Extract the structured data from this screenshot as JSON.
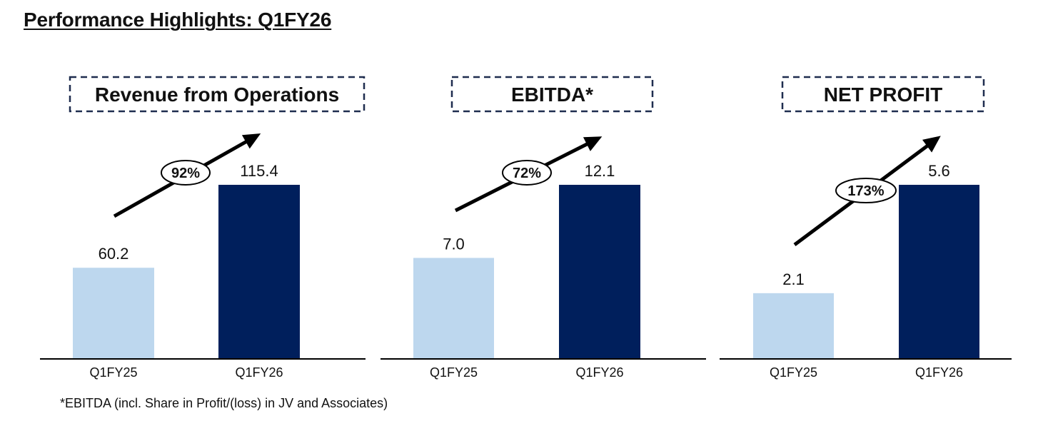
{
  "page": {
    "title": "Performance Highlights: Q1FY26",
    "footnote": "*EBITDA (incl. Share in Profit/(loss) in JV and Associates)"
  },
  "colors": {
    "prior": "#bdd7ee",
    "current": "#001f5c",
    "box_border": "#1f2d4f",
    "arrow": "#000000"
  },
  "chart_data": [
    {
      "type": "bar",
      "title": "Revenue from Operations",
      "categories": [
        "Q1FY25",
        "Q1FY26"
      ],
      "values": [
        60.2,
        115.4
      ],
      "value_labels": [
        "60.2",
        "115.4"
      ],
      "growth_label": "92%"
    },
    {
      "type": "bar",
      "title": "EBITDA*",
      "categories": [
        "Q1FY25",
        "Q1FY26"
      ],
      "values": [
        7.0,
        12.1
      ],
      "value_labels": [
        "7.0",
        "12.1"
      ],
      "growth_label": "72%"
    },
    {
      "type": "bar",
      "title": "NET PROFIT",
      "categories": [
        "Q1FY25",
        "Q1FY26"
      ],
      "values": [
        2.1,
        5.6
      ],
      "value_labels": [
        "2.1",
        "5.6"
      ],
      "growth_label": "173%"
    }
  ]
}
